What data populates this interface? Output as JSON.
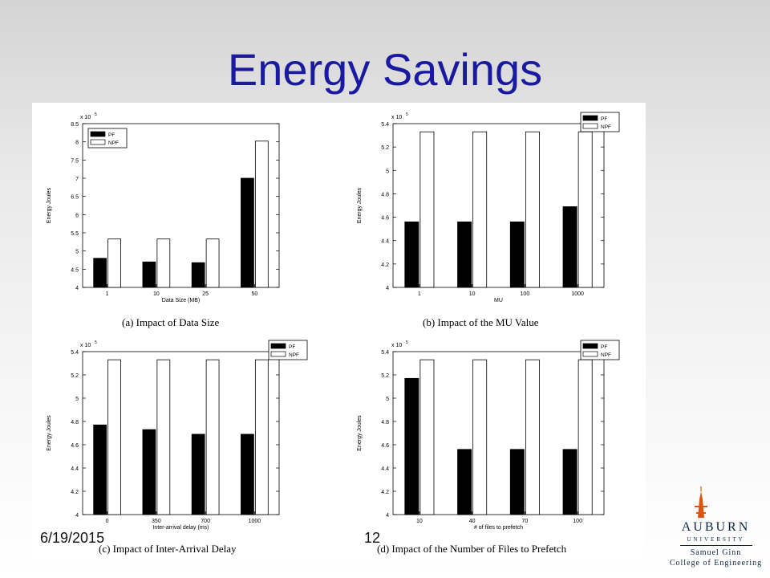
{
  "slide": {
    "title": "Energy Savings",
    "date": "6/19/2015",
    "page": "12"
  },
  "logo": {
    "name": "AUBURN",
    "university": "UNIVERSITY",
    "college_line1": "Samuel Ginn",
    "college_line2": "College of Engineering",
    "colors": {
      "navy": "#0c2340",
      "orange": "#dd550c"
    }
  },
  "colors": {
    "title": "#1a1aa0",
    "pf": "#000000",
    "npf": "#ffffff"
  },
  "chart_data": [
    {
      "type": "bar",
      "caption": "(a)  Impact of Data Size",
      "xlabel": "Data Size (MB)",
      "ylabel": "Energy Joules",
      "multiplier": "x 10",
      "exponent": "5",
      "ylim": [
        4,
        8.5
      ],
      "yticks": [
        "4",
        "4.5",
        "5",
        "5.5",
        "6",
        "6.5",
        "7",
        "7.5",
        "8",
        "8.5"
      ],
      "categories": [
        "1",
        "10",
        "25",
        "50"
      ],
      "series": [
        {
          "name": "PF",
          "values": [
            4.8,
            4.7,
            4.68,
            7.0
          ]
        },
        {
          "name": "NPF",
          "values": [
            5.33,
            5.33,
            5.33,
            8.02
          ]
        }
      ],
      "legend": "top-left"
    },
    {
      "type": "bar",
      "caption": "(b)  Impact of the MU Value",
      "xlabel": "MU",
      "ylabel": "Energy Joules",
      "multiplier": "x 10",
      "exponent": "5",
      "ylim": [
        4,
        5.4
      ],
      "yticks": [
        "4",
        "4.2",
        "4.4",
        "4.6",
        "4.8",
        "5",
        "5.2",
        "5.4"
      ],
      "categories": [
        "1",
        "10",
        "100",
        "1000"
      ],
      "series": [
        {
          "name": "PF",
          "values": [
            4.56,
            4.56,
            4.56,
            4.69
          ]
        },
        {
          "name": "NPF",
          "values": [
            5.33,
            5.33,
            5.33,
            5.33
          ]
        }
      ],
      "legend": "top-right"
    },
    {
      "type": "bar",
      "caption": "(c)  Impact of Inter-Arrival Delay",
      "xlabel": "Inter-arrival delay (ms)",
      "ylabel": "Energy Joules",
      "multiplier": "x 10",
      "exponent": "5",
      "ylim": [
        4,
        5.4
      ],
      "yticks": [
        "4",
        "4.2",
        "4.4",
        "4.6",
        "4.8",
        "5",
        "5.2",
        "5.4"
      ],
      "categories": [
        "0",
        "350",
        "700",
        "1000"
      ],
      "series": [
        {
          "name": "PF",
          "values": [
            4.77,
            4.73,
            4.69,
            4.69
          ]
        },
        {
          "name": "NPF",
          "values": [
            5.33,
            5.33,
            5.33,
            5.33
          ]
        }
      ],
      "legend": "top-right"
    },
    {
      "type": "bar",
      "caption": "(d)  Impact of the Number of Files to Prefetch",
      "xlabel": "# of files to prefetch",
      "ylabel": "Energy Joules",
      "multiplier": "x 10",
      "exponent": "5",
      "ylim": [
        4,
        5.4
      ],
      "yticks": [
        "4",
        "4.2",
        "4.4",
        "4.6",
        "4.8",
        "5",
        "5.2",
        "5.4"
      ],
      "categories": [
        "10",
        "40",
        "70",
        "100"
      ],
      "series": [
        {
          "name": "PF",
          "values": [
            5.17,
            4.56,
            4.56,
            4.56
          ]
        },
        {
          "name": "NPF",
          "values": [
            5.33,
            5.33,
            5.33,
            5.33
          ]
        }
      ],
      "legend": "top-right"
    }
  ]
}
